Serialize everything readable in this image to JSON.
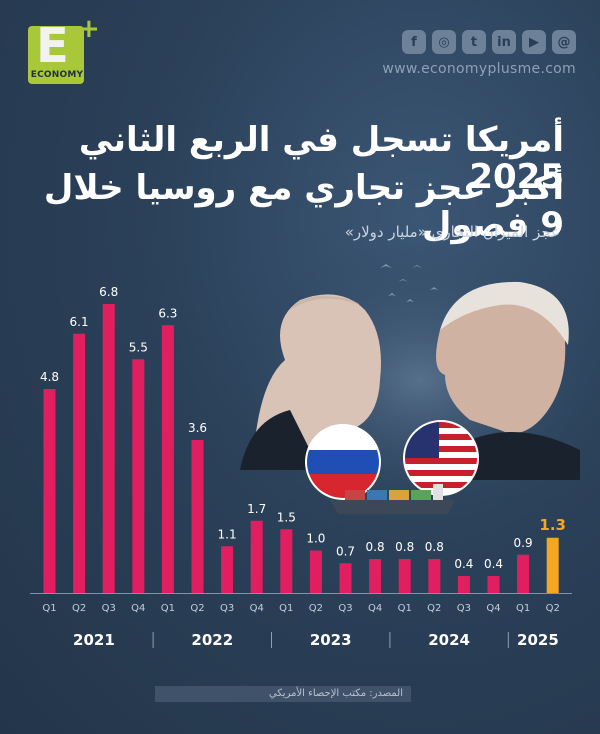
{
  "brand": {
    "logo_letter": "E",
    "logo_plus": "+",
    "logo_word": "ECONOMY",
    "website": "www.economyplusme.com",
    "social_icons": [
      "facebook-icon",
      "instagram-icon",
      "twitter-icon",
      "linkedin-icon",
      "youtube-icon",
      "threads-icon"
    ]
  },
  "header": {
    "title_line1": "أمريكا تسجل في الربع الثاني 2025",
    "title_line2": "أكبر عجز تجاري مع روسيا  خلال 9 فصول",
    "subtitle": "عجز الميزان التجاري «مليار دولار»"
  },
  "source": "المصدر: مكتب الإحصاء الأمريكي",
  "colors": {
    "bar": "#e11e60",
    "highlight_bar": "#f5a623",
    "label": "#ffffff",
    "highlight_label": "#f5a623"
  },
  "chart_data": {
    "type": "bar",
    "categories": [
      "Q1",
      "Q2",
      "Q3",
      "Q4",
      "Q1",
      "Q2",
      "Q3",
      "Q4",
      "Q1",
      "Q2",
      "Q3",
      "Q4",
      "Q1",
      "Q2",
      "Q3",
      "Q4",
      "Q1",
      "Q2"
    ],
    "values": [
      4.8,
      6.1,
      6.8,
      5.5,
      6.3,
      3.6,
      1.1,
      1.7,
      1.5,
      1.0,
      0.7,
      0.8,
      0.8,
      0.8,
      0.4,
      0.4,
      0.9,
      1.3
    ],
    "value_labels": [
      "4.8",
      "6.1",
      "6.8",
      "5.5",
      "6.3",
      "3.6",
      "1.1",
      "1.7",
      "1.5",
      "1.0",
      "0.7",
      "0.8",
      "0.8",
      "0.8",
      "0.4",
      "0.4",
      "0.9",
      "1.3"
    ],
    "years": [
      {
        "label": "2021",
        "count": 4
      },
      {
        "label": "2022",
        "count": 4
      },
      {
        "label": "2023",
        "count": 4
      },
      {
        "label": "2024",
        "count": 4
      },
      {
        "label": "2025",
        "count": 2
      }
    ],
    "highlight_index": 17,
    "ylim": [
      0,
      7.2
    ],
    "grid": false
  }
}
